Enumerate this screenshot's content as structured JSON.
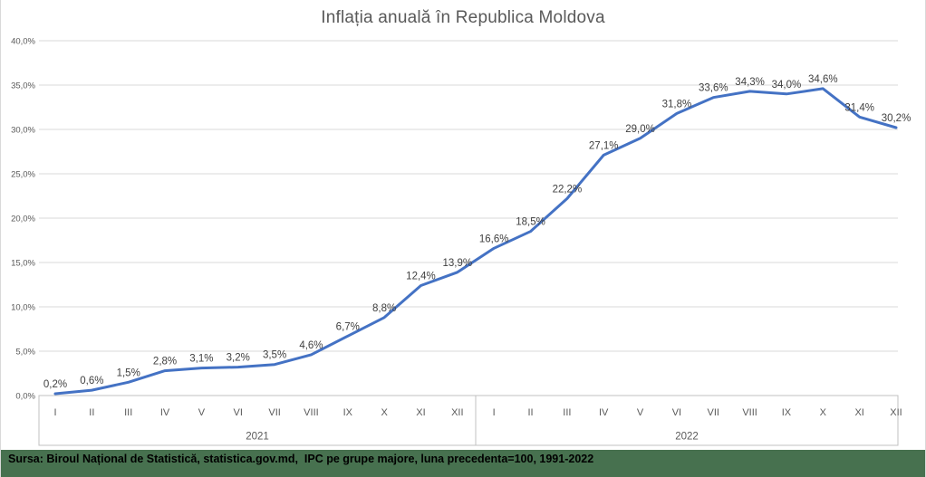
{
  "title": "Inflația anuală în Republica Moldova",
  "source_bar": {
    "text": "Sursa: Biroul Național de Statistică, statistica.gov.md,  IPC pe grupe majore, luna precedenta=100, 1991-2022",
    "background": "#47714f",
    "text_color": "#000000"
  },
  "colors": {
    "line": "#4472c4",
    "data_label": "#404040",
    "axis_text": "#595959",
    "title_text": "#595959",
    "gridline": "#d9d9d9",
    "axis_line": "#c0c0c0",
    "background": "#ffffff"
  },
  "chart_data": {
    "type": "line",
    "title": "Inflația anuală în Republica Moldova",
    "xlabel": "",
    "ylabel": "",
    "legend": "none",
    "grid": true,
    "ylim": [
      0,
      40
    ],
    "y_tick_step": 5,
    "y_tick_labels": [
      "0,0%",
      "5,0%",
      "10,0%",
      "15,0%",
      "20,0%",
      "25,0%",
      "30,0%",
      "35,0%",
      "40,0%"
    ],
    "categories": [
      "I",
      "II",
      "III",
      "IV",
      "V",
      "VI",
      "VII",
      "VIII",
      "IX",
      "X",
      "XI",
      "XII",
      "I",
      "II",
      "III",
      "IV",
      "V",
      "VI",
      "VII",
      "VIII",
      "IX",
      "X",
      "XI",
      "XII"
    ],
    "category_groups": [
      {
        "label": "2021",
        "span": 12
      },
      {
        "label": "2022",
        "span": 12
      }
    ],
    "series": [
      {
        "name": "Inflația anuală",
        "values": [
          0.2,
          0.6,
          1.5,
          2.8,
          3.1,
          3.2,
          3.5,
          4.6,
          6.7,
          8.8,
          12.4,
          13.9,
          16.6,
          18.5,
          22.2,
          27.1,
          29.0,
          31.8,
          33.6,
          34.3,
          34.0,
          34.6,
          31.4,
          30.2
        ],
        "data_labels": [
          "0,2%",
          "0,6%",
          "1,5%",
          "2,8%",
          "3,1%",
          "3,2%",
          "3,5%",
          "4,6%",
          "6,7%",
          "8,8%",
          "12,4%",
          "13,9%",
          "16,6%",
          "18,5%",
          "22,2%",
          "27,1%",
          "29,0%",
          "31,8%",
          "33,6%",
          "34,3%",
          "34,0%",
          "34,6%",
          "31,4%",
          "30,2%"
        ]
      }
    ]
  }
}
